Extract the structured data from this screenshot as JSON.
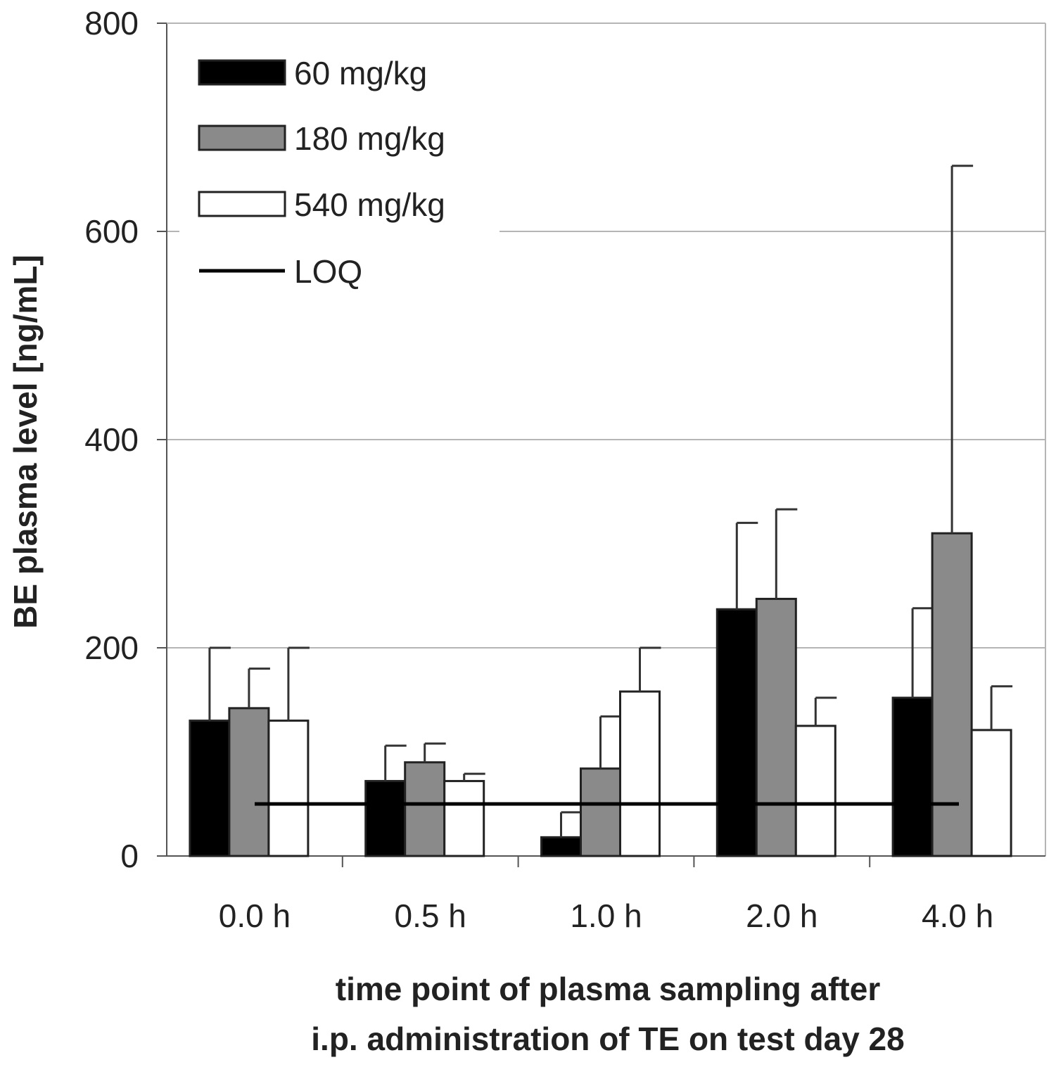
{
  "chart_data": {
    "type": "bar",
    "categories": [
      "0.0 h",
      "0.5 h",
      "1.0 h",
      "2.0 h",
      "4.0 h"
    ],
    "series": [
      {
        "name": "60 mg/kg",
        "color": "#000000",
        "values": [
          130,
          72,
          18,
          237,
          152
        ],
        "error": [
          70,
          34,
          24,
          83,
          86
        ]
      },
      {
        "name": "180 mg/kg",
        "color": "#8a8a8a",
        "values": [
          142,
          90,
          84,
          247,
          310
        ],
        "error": [
          38,
          18,
          50,
          86,
          353
        ]
      },
      {
        "name": "540 mg/kg",
        "color": "#ffffff",
        "values": [
          130,
          72,
          158,
          125,
          121
        ],
        "error": [
          70,
          7,
          42,
          27,
          42
        ]
      }
    ],
    "reference_line": {
      "name": "LOQ",
      "value": 50
    },
    "xlabel_lines": [
      "time point of plasma sampling after",
      "i.p. administration of TE on test day 28"
    ],
    "ylabel": "BE plasma level [ng/mL]",
    "ylim": [
      0,
      800
    ],
    "yticks": [
      "0",
      "200",
      "400",
      "600",
      "800"
    ],
    "grid": true,
    "legend": "top-left"
  }
}
